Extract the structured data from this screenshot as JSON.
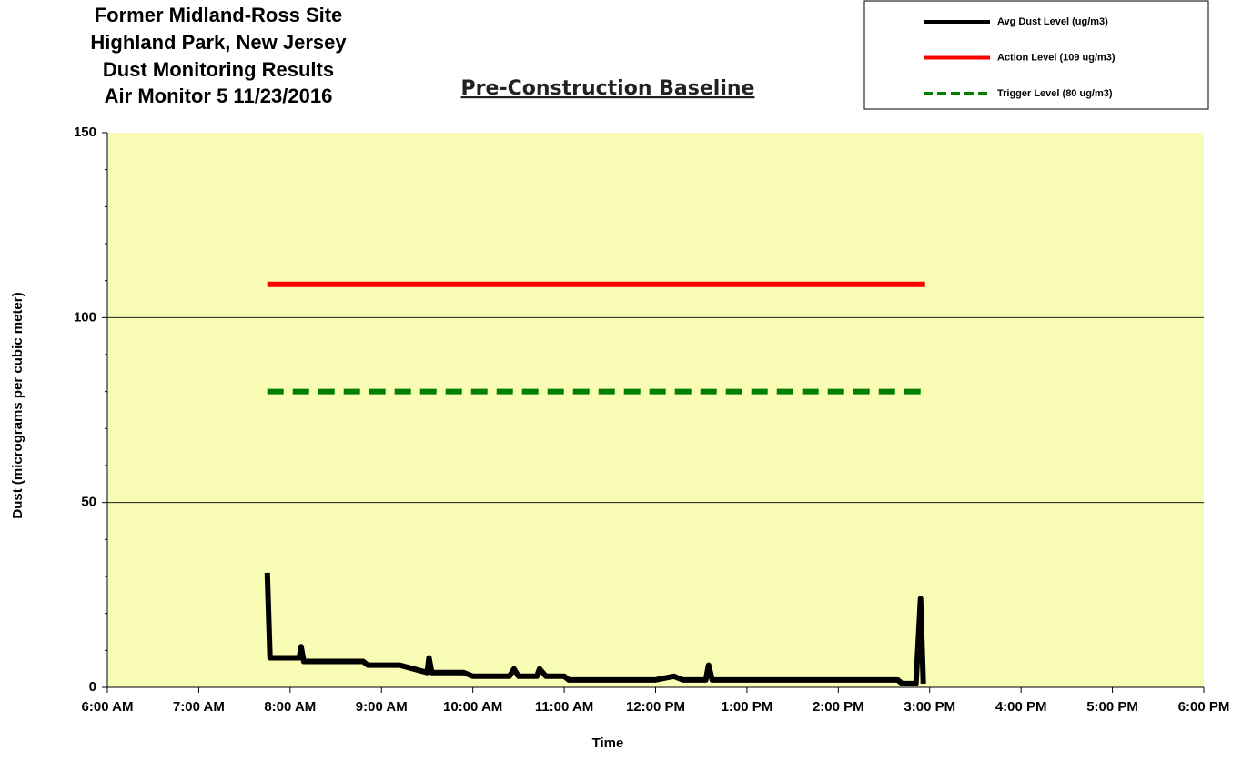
{
  "chart_data": {
    "type": "line",
    "title": [
      "Former Midland-Ross Site",
      "Highland Park, New Jersey",
      "Dust Monitoring Results",
      "Air Monitor 5  11/23/2016"
    ],
    "subtitle": "Pre-Construction Baseline",
    "xlabel": "Time",
    "ylabel": "Dust (micrograms per cubic meter)",
    "xlim": [
      6,
      18
    ],
    "xticks": [
      {
        "value": 6,
        "label": "6:00 AM"
      },
      {
        "value": 7,
        "label": "7:00 AM"
      },
      {
        "value": 8,
        "label": "8:00 AM"
      },
      {
        "value": 9,
        "label": "9:00 AM"
      },
      {
        "value": 10,
        "label": "10:00 AM"
      },
      {
        "value": 11,
        "label": "11:00 AM"
      },
      {
        "value": 12,
        "label": "12:00 PM"
      },
      {
        "value": 13,
        "label": "1:00 PM"
      },
      {
        "value": 14,
        "label": "2:00 PM"
      },
      {
        "value": 15,
        "label": "3:00 PM"
      },
      {
        "value": 16,
        "label": "4:00 PM"
      },
      {
        "value": 17,
        "label": "5:00 PM"
      },
      {
        "value": 18,
        "label": "6:00 PM"
      }
    ],
    "ylim": [
      0,
      150
    ],
    "yticks": [
      0,
      50,
      100,
      150
    ],
    "yminor_ticks": [
      10,
      20,
      30,
      40,
      60,
      70,
      80,
      90,
      110,
      120,
      130,
      140
    ],
    "grid": true,
    "plot_background": "#f8fcb4",
    "legend": "top-right",
    "series": [
      {
        "name": "Avg Dust Level (ug/m3)",
        "color": "#000000",
        "width": 6,
        "dash": "none",
        "x": [
          7.75,
          7.78,
          7.9,
          8.0,
          8.1,
          8.12,
          8.15,
          8.4,
          8.5,
          8.8,
          8.85,
          9.2,
          9.35,
          9.5,
          9.52,
          9.55,
          9.9,
          10.0,
          10.4,
          10.45,
          10.5,
          10.7,
          10.73,
          10.8,
          11.0,
          11.05,
          11.4,
          12.0,
          12.2,
          12.3,
          12.55,
          12.58,
          12.62,
          13.5,
          14.1,
          14.65,
          14.7,
          14.85,
          14.9,
          14.93
        ],
        "values": [
          31,
          8,
          8,
          8,
          8,
          11,
          7,
          7,
          7,
          7,
          6,
          6,
          5,
          4,
          8,
          4,
          4,
          3,
          3,
          5,
          3,
          3,
          5,
          3,
          3,
          2,
          2,
          2,
          3,
          2,
          2,
          6,
          2,
          2,
          2,
          2,
          1,
          1,
          24,
          1
        ]
      },
      {
        "name": "Action Level (109 ug/m3)",
        "color": "#ff0000",
        "width": 6,
        "dash": "none",
        "x": [
          7.75,
          14.95
        ],
        "values": [
          109,
          109
        ]
      },
      {
        "name": "Trigger Level  (80 ug/m3)",
        "color": "#008000",
        "width": 6,
        "dash": "dashed",
        "x": [
          7.75,
          14.95
        ],
        "values": [
          80,
          80
        ]
      }
    ]
  }
}
